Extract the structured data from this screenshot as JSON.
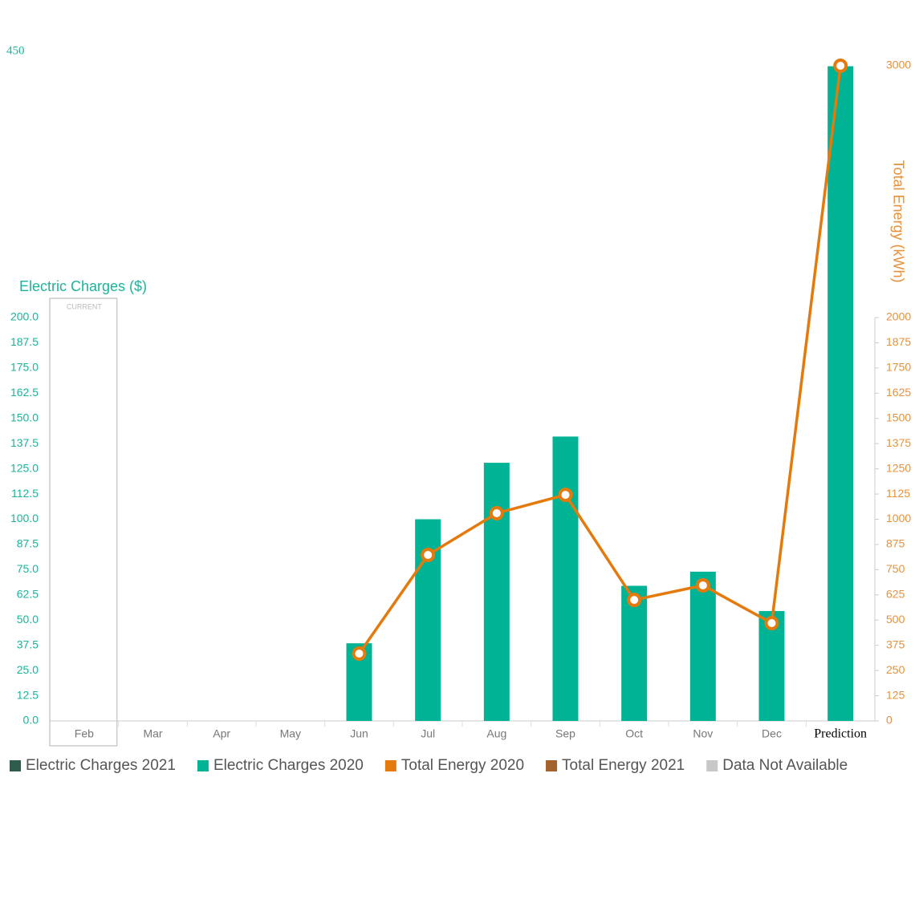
{
  "chart_data": {
    "type": "bar",
    "y_axis_label": "Electric Charges ($)",
    "y2_axis_label": "Total Energy (kWh)",
    "categories": [
      "Feb",
      "Mar",
      "Apr",
      "May",
      "Jun",
      "Jul",
      "Aug",
      "Sep",
      "Oct",
      "Nov",
      "Dec",
      "Prediction"
    ],
    "highlight": {
      "label": "CURRENT",
      "category": "Feb"
    },
    "broken_axis": true,
    "series": [
      {
        "name": "Electric Charges 2021",
        "color": "#2f5c4c",
        "type": "bar",
        "values": [
          null,
          null,
          null,
          null,
          null,
          null,
          null,
          null,
          null,
          null,
          null,
          null
        ]
      },
      {
        "name": "Electric Charges 2020",
        "color": "#00b395",
        "type": "bar",
        "values": [
          null,
          null,
          null,
          null,
          38.5,
          100,
          128,
          141,
          67,
          74,
          54.5,
          436
        ]
      },
      {
        "name": "Total Energy 2020",
        "color": "#e57a0c",
        "type": "line",
        "axis": "y2",
        "values": [
          null,
          null,
          null,
          null,
          334,
          823,
          1030,
          1121,
          600,
          672,
          485,
          3000
        ]
      },
      {
        "name": "Total Energy 2021",
        "color": "#a3612b",
        "type": "line",
        "axis": "y2",
        "values": [
          null,
          null,
          null,
          null,
          null,
          null,
          null,
          null,
          null,
          null,
          null,
          null
        ]
      }
    ],
    "legend_extra": [
      {
        "name": "Data Not Available",
        "color": "#c8c8c8"
      }
    ],
    "ylim": [
      0,
      450
    ],
    "yticks": [
      {
        "value": 0,
        "label": "0.0"
      },
      12.5,
      {
        "value": 25,
        "label": "25.0"
      },
      37.5,
      {
        "value": 50,
        "label": "50.0"
      },
      62.5,
      {
        "value": 75,
        "label": "75.0"
      },
      87.5,
      {
        "value": 100,
        "label": "100.0"
      },
      112.5,
      {
        "value": 125,
        "label": "125.0"
      },
      137.5,
      {
        "value": 150,
        "label": "150.0"
      },
      162.5,
      {
        "value": 175,
        "label": "175.0"
      },
      187.5,
      {
        "value": 200,
        "label": "200.0"
      },
      450
    ],
    "y2lim": [
      0,
      3000
    ],
    "y2ticks": [
      0,
      125,
      250,
      375,
      500,
      625,
      750,
      875,
      1000,
      1125,
      1250,
      1375,
      1500,
      1625,
      1750,
      1875,
      2000,
      3000
    ],
    "legend": "bottom"
  }
}
